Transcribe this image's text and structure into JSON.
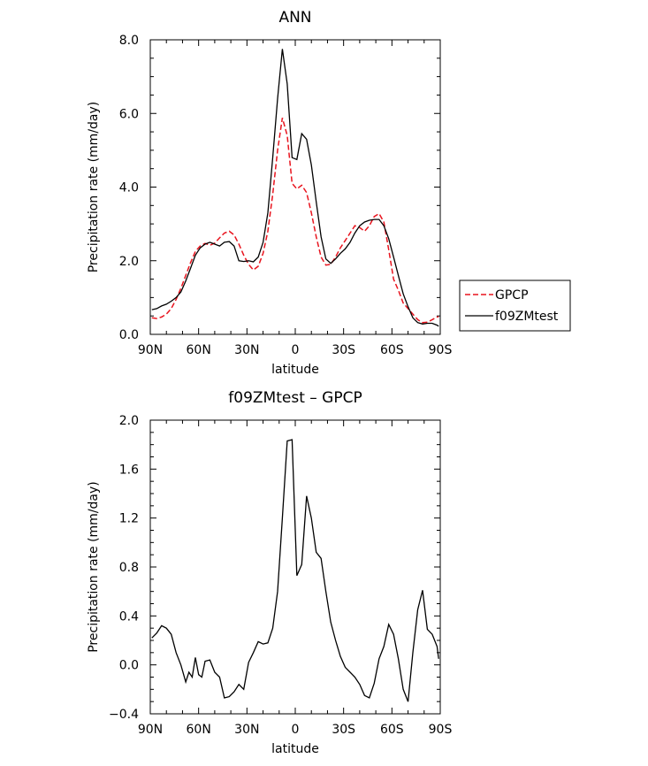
{
  "chart_data": [
    {
      "type": "line",
      "title": "ANN",
      "xlabel": "latitude",
      "ylabel": "Precipitation rate (mm/day)",
      "xlim": [
        -90,
        90
      ],
      "ylim": [
        0,
        8
      ],
      "xticks": [
        -90,
        -60,
        -30,
        0,
        30,
        60,
        90
      ],
      "xtick_labels": [
        "90N",
        "60N",
        "30N",
        "0",
        "30S",
        "60S",
        "90S"
      ],
      "yticks": [
        0,
        2,
        4,
        6,
        8
      ],
      "ytick_labels": [
        "0.0",
        "2.0",
        "4.0",
        "6.0",
        "8.0"
      ],
      "legend": "right",
      "series": [
        {
          "name": "GPCP",
          "color": "#e8141e",
          "dash": "dashed",
          "x": [
            -89,
            -86,
            -83,
            -80,
            -77,
            -74,
            -71,
            -68,
            -65,
            -62,
            -59,
            -56,
            -53,
            -50,
            -47,
            -44,
            -41,
            -38,
            -35,
            -32,
            -29,
            -26,
            -23,
            -20,
            -17,
            -14,
            -11,
            -8,
            -5,
            -2,
            1,
            4,
            7,
            10,
            13,
            16,
            19,
            22,
            25,
            28,
            31,
            34,
            37,
            40,
            43,
            46,
            49,
            52,
            55,
            58,
            61,
            64,
            67,
            70,
            73,
            76,
            79,
            82,
            85,
            88,
            89
          ],
          "y": [
            0.45,
            0.43,
            0.47,
            0.55,
            0.7,
            0.95,
            1.25,
            1.6,
            1.95,
            2.25,
            2.4,
            2.47,
            2.42,
            2.48,
            2.62,
            2.75,
            2.8,
            2.7,
            2.45,
            2.15,
            1.9,
            1.75,
            1.85,
            2.2,
            2.8,
            3.8,
            5.0,
            5.88,
            5.4,
            4.1,
            3.95,
            4.05,
            3.85,
            3.3,
            2.65,
            2.1,
            1.88,
            1.9,
            2.1,
            2.35,
            2.55,
            2.75,
            2.95,
            2.9,
            2.8,
            2.95,
            3.2,
            3.28,
            3.05,
            2.3,
            1.5,
            1.2,
            0.85,
            0.7,
            0.55,
            0.4,
            0.32,
            0.33,
            0.4,
            0.47,
            0.48
          ]
        },
        {
          "name": "f09ZMtest",
          "color": "#000000",
          "dash": "solid",
          "x": [
            -89,
            -86,
            -83,
            -80,
            -77,
            -74,
            -71,
            -68,
            -65,
            -62,
            -59,
            -56,
            -53,
            -50,
            -47,
            -44,
            -41,
            -38,
            -35,
            -32,
            -29,
            -26,
            -23,
            -20,
            -17,
            -14,
            -11,
            -8,
            -5,
            -2,
            1,
            4,
            7,
            10,
            13,
            16,
            19,
            22,
            25,
            28,
            31,
            34,
            37,
            40,
            43,
            46,
            49,
            52,
            55,
            58,
            61,
            64,
            67,
            70,
            73,
            76,
            79,
            82,
            85,
            88,
            89
          ],
          "y": [
            0.67,
            0.7,
            0.77,
            0.82,
            0.9,
            1.0,
            1.15,
            1.45,
            1.8,
            2.15,
            2.35,
            2.45,
            2.5,
            2.45,
            2.4,
            2.5,
            2.52,
            2.4,
            2.0,
            1.98,
            2.0,
            1.97,
            2.1,
            2.5,
            3.3,
            4.8,
            6.4,
            7.75,
            6.8,
            4.8,
            4.75,
            5.45,
            5.3,
            4.6,
            3.6,
            2.65,
            2.05,
            1.93,
            2.05,
            2.2,
            2.32,
            2.5,
            2.75,
            2.95,
            3.05,
            3.1,
            3.12,
            3.12,
            2.95,
            2.6,
            2.1,
            1.6,
            1.1,
            0.75,
            0.45,
            0.32,
            0.28,
            0.3,
            0.3,
            0.25,
            0.22
          ]
        }
      ]
    },
    {
      "type": "line",
      "title": "f09ZMtest - GPCP",
      "xlabel": "latitude",
      "ylabel": "Precipitation rate (mm/day)",
      "xlim": [
        -90,
        90
      ],
      "ylim": [
        -0.4,
        2.0
      ],
      "xticks": [
        -90,
        -60,
        -30,
        0,
        30,
        60,
        90
      ],
      "xtick_labels": [
        "90N",
        "60N",
        "30N",
        "0",
        "30S",
        "60S",
        "90S"
      ],
      "yticks": [
        -0.4,
        0.0,
        0.4,
        0.8,
        1.2,
        1.6,
        2.0
      ],
      "ytick_labels": [
        "-0.4",
        "0.0",
        "0.4",
        "0.8",
        "1.2",
        "1.6",
        "2.0"
      ],
      "series": [
        {
          "color": "#000000",
          "dash": "solid",
          "x": [
            -89,
            -86,
            -83,
            -80,
            -77,
            -74,
            -71,
            -68,
            -66,
            -64,
            -62,
            -60,
            -58,
            -56,
            -53,
            -50,
            -47,
            -44,
            -41,
            -38,
            -35,
            -32,
            -29,
            -26,
            -23,
            -20,
            -17,
            -14,
            -11,
            -8,
            -5,
            -2,
            1,
            4,
            7,
            10,
            13,
            16,
            19,
            22,
            25,
            28,
            31,
            34,
            37,
            40,
            43,
            46,
            49,
            52,
            55,
            58,
            61,
            64,
            67,
            70,
            73,
            76,
            79,
            82,
            85,
            88,
            89
          ],
          "y": [
            0.22,
            0.26,
            0.32,
            0.3,
            0.25,
            0.1,
            0.0,
            -0.14,
            -0.06,
            -0.1,
            0.06,
            -0.08,
            -0.1,
            0.03,
            0.04,
            -0.06,
            -0.1,
            -0.27,
            -0.26,
            -0.22,
            -0.16,
            -0.2,
            0.02,
            0.1,
            0.19,
            0.17,
            0.18,
            0.3,
            0.6,
            1.2,
            1.83,
            1.84,
            0.73,
            0.82,
            1.38,
            1.2,
            0.92,
            0.87,
            0.6,
            0.35,
            0.2,
            0.07,
            -0.02,
            -0.06,
            -0.1,
            -0.16,
            -0.25,
            -0.27,
            -0.15,
            0.05,
            0.15,
            0.33,
            0.25,
            0.05,
            -0.2,
            -0.3,
            0.1,
            0.45,
            0.61,
            0.29,
            0.25,
            0.15,
            0.05
          ]
        }
      ]
    }
  ]
}
